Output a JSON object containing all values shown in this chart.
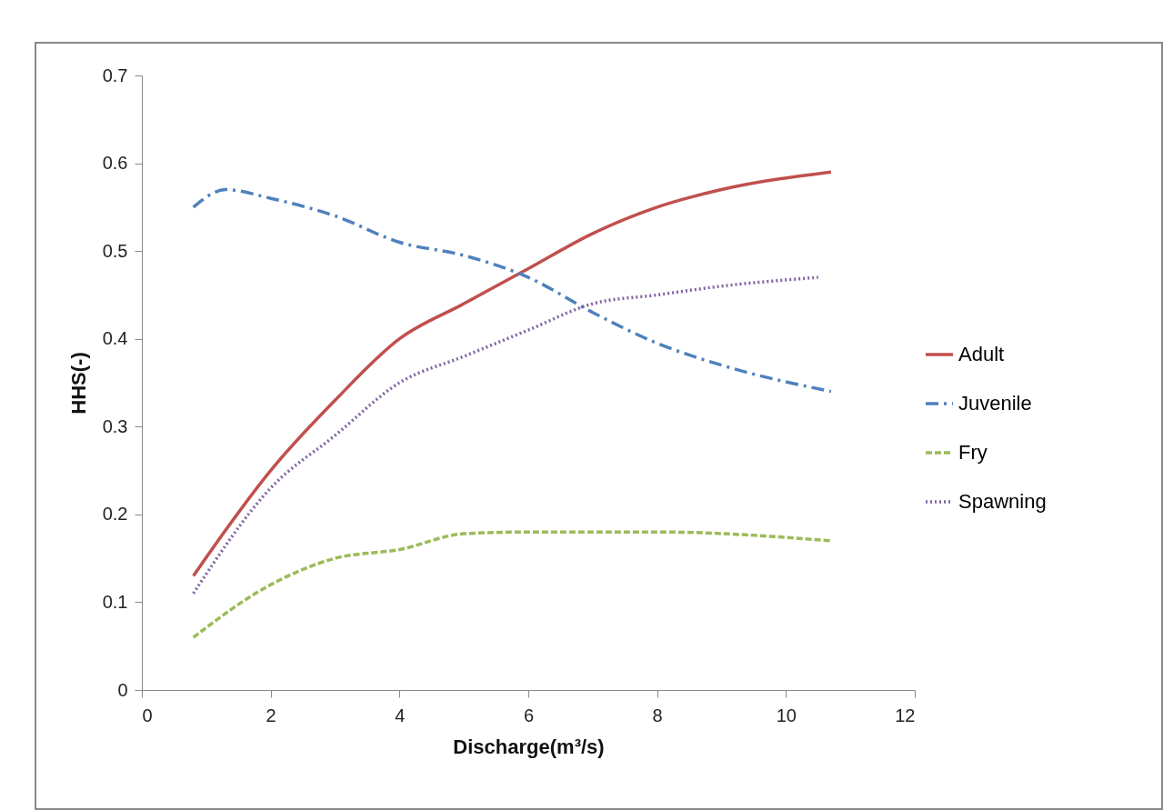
{
  "chart_data": {
    "type": "line",
    "xlabel": "Discharge(m³/s)",
    "ylabel": "HHS(-)",
    "xlim": [
      0,
      12
    ],
    "xticks": [
      0,
      2,
      4,
      6,
      8,
      10,
      12
    ],
    "ylim": [
      0,
      0.7
    ],
    "yticks": [
      {
        "value": 0,
        "label": "0"
      },
      0.1,
      0.2,
      0.3,
      0.4,
      0.5,
      0.6,
      0.7
    ],
    "grid": false,
    "legend": "right",
    "marker": "none",
    "series": [
      {
        "name": "Adult",
        "color": "#c0504d",
        "line_style": "solid",
        "x": [
          0.8,
          2,
          3,
          4,
          5,
          6,
          7,
          8,
          9,
          10.7
        ],
        "values": [
          0.13,
          0.25,
          0.33,
          0.4,
          0.44,
          0.48,
          0.52,
          0.55,
          0.57,
          0.59
        ]
      },
      {
        "name": "Juvenile",
        "color": "#4f81bd",
        "line_style": "dashdot",
        "x": [
          0.8,
          1.3,
          2,
          3,
          4,
          5,
          6,
          7,
          8,
          9,
          10.7
        ],
        "values": [
          0.55,
          0.57,
          0.56,
          0.54,
          0.51,
          0.495,
          0.47,
          0.43,
          0.395,
          0.37,
          0.34
        ]
      },
      {
        "name": "Fry",
        "color": "#9bbb59",
        "line_style": "dashed",
        "x": [
          0.8,
          2,
          3,
          4,
          5,
          6,
          7,
          8,
          10.7
        ],
        "values": [
          0.06,
          0.12,
          0.15,
          0.16,
          0.178,
          0.18,
          0.18,
          0.18,
          0.17
        ]
      },
      {
        "name": "Spawning",
        "color": "#8064a2",
        "line_style": "dotted",
        "x": [
          0.8,
          2,
          3,
          4,
          5,
          6,
          7,
          8,
          9,
          10.5
        ],
        "values": [
          0.11,
          0.23,
          0.29,
          0.35,
          0.38,
          0.41,
          0.44,
          0.45,
          0.46,
          0.47
        ]
      }
    ]
  }
}
